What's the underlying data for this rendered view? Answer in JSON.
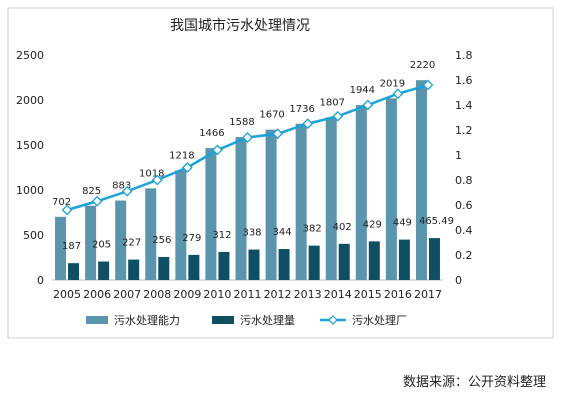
{
  "chart_data": {
    "type": "bar",
    "title": "我国城市污水处理情况",
    "categories": [
      "2005",
      "2006",
      "2007",
      "2008",
      "2009",
      "2010",
      "2011",
      "2012",
      "2013",
      "2014",
      "2015",
      "2016",
      "2017"
    ],
    "series": [
      {
        "name": "污水处理能力",
        "kind": "bar",
        "axis": "left",
        "color": "#5b95ad",
        "values": [
          702,
          825,
          883,
          1018,
          1218,
          1466,
          1588,
          1670,
          1736,
          1807,
          1944,
          2019,
          2220
        ],
        "labels": [
          "702",
          "825",
          "883",
          "1018",
          "1218",
          "1466",
          "1588",
          "1670",
          "1736",
          "1807",
          "1944",
          "2019",
          "2220"
        ]
      },
      {
        "name": "污水处理量",
        "kind": "bar",
        "axis": "left",
        "color": "#0e4f63",
        "values": [
          187,
          205,
          227,
          256,
          279,
          312,
          338,
          344,
          382,
          402,
          429,
          449,
          465.49
        ],
        "labels": [
          "187",
          "205",
          "227",
          "256",
          "279",
          "312",
          "338",
          "344",
          "382",
          "402",
          "429",
          "449",
          "465.49"
        ]
      },
      {
        "name": "污水处理厂",
        "kind": "line",
        "axis": "right",
        "color": "#1aa3d6",
        "values": [
          0.56,
          0.63,
          0.71,
          0.8,
          0.9,
          1.04,
          1.14,
          1.17,
          1.25,
          1.31,
          1.4,
          1.49,
          1.56
        ]
      }
    ],
    "y_left": {
      "min": 0,
      "max": 2500,
      "ticks": [
        0,
        500,
        1000,
        1500,
        2000,
        2500
      ]
    },
    "y_right": {
      "min": 0,
      "max": 1.8,
      "ticks": [
        "0",
        "0.2",
        "0.4",
        "0.6",
        "0.8",
        "1",
        "1.2",
        "1.4",
        "1.6",
        "1.8"
      ]
    },
    "grid": false,
    "legend": "bottom"
  },
  "source": "数据来源：公开资料整理"
}
